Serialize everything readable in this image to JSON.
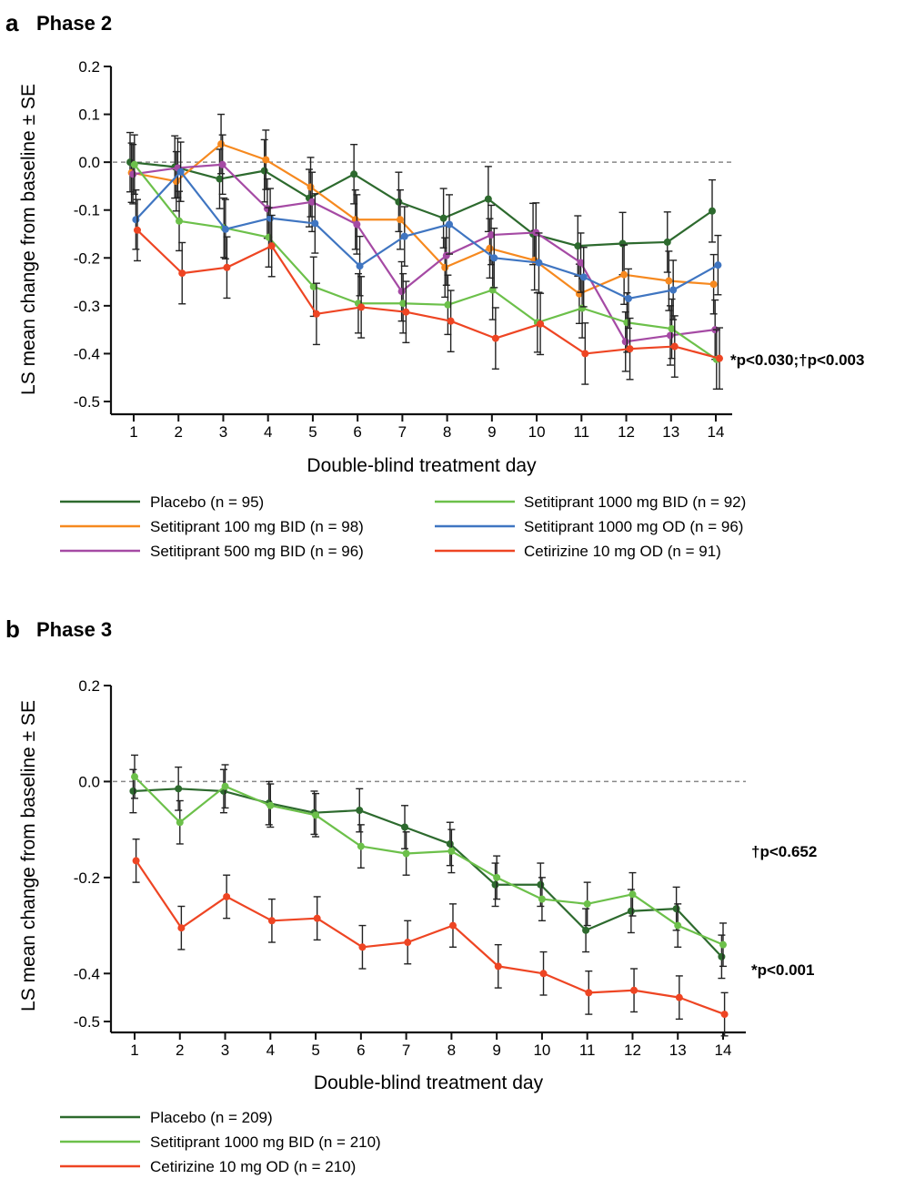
{
  "figure": {
    "panels": [
      {
        "letter": "a",
        "title": "Phase 2"
      },
      {
        "letter": "b",
        "title": "Phase 3"
      }
    ]
  },
  "chart_data": [
    {
      "type": "line",
      "panel": "a",
      "title": "Phase 2",
      "xlabel": "Double-blind treatment day",
      "ylabel": "LS mean change from baseline  ± SE",
      "x": [
        1,
        2,
        3,
        4,
        5,
        6,
        7,
        8,
        9,
        10,
        11,
        12,
        13,
        14
      ],
      "ylim": [
        -0.5,
        0.2
      ],
      "yticks": [
        0.2,
        0.1,
        0.0,
        -0.1,
        -0.2,
        -0.3,
        -0.4,
        -0.5
      ],
      "ytick_labels": [
        "0.2",
        "0.1",
        "0.0",
        "-0.1",
        "-0.2",
        "-0.3",
        "-0.4",
        "-0.5"
      ],
      "reference_line": 0.0,
      "annotation": "*p<0.030;†p<0.003",
      "legend_columns": 2,
      "series": [
        {
          "name": "Placebo (n = 95)",
          "color": "#2d6a2e",
          "values": [
            0.0,
            -0.01,
            -0.035,
            -0.018,
            -0.075,
            -0.025,
            -0.083,
            -0.117,
            -0.077,
            -0.15,
            -0.175,
            -0.17,
            -0.167,
            -0.102
          ],
          "se": [
            0.062,
            0.065,
            0.062,
            0.065,
            0.06,
            0.062,
            0.062,
            0.062,
            0.068,
            0.064,
            0.063,
            0.065,
            0.063,
            0.065
          ]
        },
        {
          "name": "Setitiprant 100 mg BID (n = 98)",
          "color": "#f6891f",
          "values": [
            -0.022,
            -0.04,
            0.038,
            0.005,
            -0.052,
            -0.12,
            -0.12,
            -0.22,
            -0.18,
            -0.205,
            -0.275,
            -0.235,
            -0.248,
            -0.255
          ],
          "se": [
            0.062,
            0.062,
            0.062,
            0.062,
            0.062,
            0.062,
            0.062,
            0.062,
            0.062,
            0.062,
            0.062,
            0.062,
            0.062,
            0.062
          ]
        },
        {
          "name": "Setitiprant 500 mg BID (n = 96)",
          "color": "#a54aa4",
          "values": [
            -0.025,
            -0.012,
            -0.005,
            -0.097,
            -0.083,
            -0.13,
            -0.27,
            -0.195,
            -0.152,
            -0.147,
            -0.21,
            -0.375,
            -0.362,
            -0.35
          ],
          "se": [
            0.062,
            0.062,
            0.062,
            0.062,
            0.062,
            0.062,
            0.062,
            0.062,
            0.062,
            0.062,
            0.062,
            0.062,
            0.062,
            0.062
          ]
        },
        {
          "name": "Setitiprant 1000 mg BID (n = 92)",
          "color": "#6cc04a",
          "values": [
            -0.005,
            -0.123,
            -0.137,
            -0.157,
            -0.26,
            -0.295,
            -0.295,
            -0.298,
            -0.267,
            -0.335,
            -0.305,
            -0.335,
            -0.348,
            -0.412
          ],
          "se": [
            0.062,
            0.062,
            0.062,
            0.062,
            0.062,
            0.062,
            0.062,
            0.062,
            0.062,
            0.062,
            0.062,
            0.062,
            0.062,
            0.062
          ]
        },
        {
          "name": "Setitiprant 1000 mg OD (n = 96)",
          "color": "#3f75c1",
          "values": [
            -0.12,
            -0.02,
            -0.14,
            -0.117,
            -0.128,
            -0.217,
            -0.155,
            -0.13,
            -0.2,
            -0.21,
            -0.24,
            -0.285,
            -0.267,
            -0.215
          ],
          "se": [
            0.062,
            0.062,
            0.062,
            0.062,
            0.062,
            0.062,
            0.062,
            0.062,
            0.062,
            0.062,
            0.062,
            0.062,
            0.062,
            0.062
          ]
        },
        {
          "name": "Cetirizine 10 mg OD (n = 91)",
          "color": "#ee4523",
          "values": [
            -0.142,
            -0.232,
            -0.22,
            -0.175,
            -0.317,
            -0.303,
            -0.313,
            -0.332,
            -0.368,
            -0.338,
            -0.4,
            -0.39,
            -0.385,
            -0.41
          ],
          "se": [
            0.064,
            0.064,
            0.064,
            0.064,
            0.064,
            0.064,
            0.064,
            0.064,
            0.064,
            0.064,
            0.064,
            0.064,
            0.064,
            0.064
          ]
        }
      ]
    },
    {
      "type": "line",
      "panel": "b",
      "title": "Phase 3",
      "xlabel": "Double-blind treatment day",
      "ylabel": "LS mean change from baseline  ± SE",
      "x": [
        1,
        2,
        3,
        4,
        5,
        6,
        7,
        8,
        9,
        10,
        11,
        12,
        13,
        14
      ],
      "ylim": [
        -0.5,
        0.2
      ],
      "yticks": [
        0.2,
        0.0,
        -0.2,
        -0.4,
        -0.5
      ],
      "ytick_labels": [
        "0.2",
        "0.0",
        "-0.2",
        "-0.4",
        "-0.5"
      ],
      "reference_line": 0.0,
      "annotations": [
        "†p<0.652",
        "*p<0.001"
      ],
      "legend_columns": 1,
      "series": [
        {
          "name": "Placebo (n = 209)",
          "color": "#2d6a2e",
          "values": [
            -0.02,
            -0.015,
            -0.02,
            -0.045,
            -0.065,
            -0.06,
            -0.095,
            -0.13,
            -0.215,
            -0.215,
            -0.31,
            -0.27,
            -0.265,
            -0.365
          ],
          "se": [
            0.045,
            0.045,
            0.045,
            0.045,
            0.045,
            0.045,
            0.045,
            0.045,
            0.045,
            0.045,
            0.045,
            0.045,
            0.045,
            0.045
          ]
        },
        {
          "name": "Setitiprant 1000 mg BID (n = 210)",
          "color": "#6cc04a",
          "values": [
            0.01,
            -0.085,
            -0.01,
            -0.05,
            -0.07,
            -0.135,
            -0.15,
            -0.145,
            -0.2,
            -0.245,
            -0.255,
            -0.235,
            -0.3,
            -0.34
          ],
          "se": [
            0.045,
            0.045,
            0.045,
            0.045,
            0.045,
            0.045,
            0.045,
            0.045,
            0.045,
            0.045,
            0.045,
            0.045,
            0.045,
            0.045
          ]
        },
        {
          "name": "Cetirizine 10 mg OD (n = 210)",
          "color": "#ee4523",
          "values": [
            -0.165,
            -0.305,
            -0.24,
            -0.29,
            -0.285,
            -0.345,
            -0.335,
            -0.3,
            -0.385,
            -0.4,
            -0.44,
            -0.435,
            -0.45,
            -0.485
          ],
          "se": [
            0.045,
            0.045,
            0.045,
            0.045,
            0.045,
            0.045,
            0.045,
            0.045,
            0.045,
            0.045,
            0.045,
            0.045,
            0.045,
            0.045
          ]
        }
      ]
    }
  ]
}
